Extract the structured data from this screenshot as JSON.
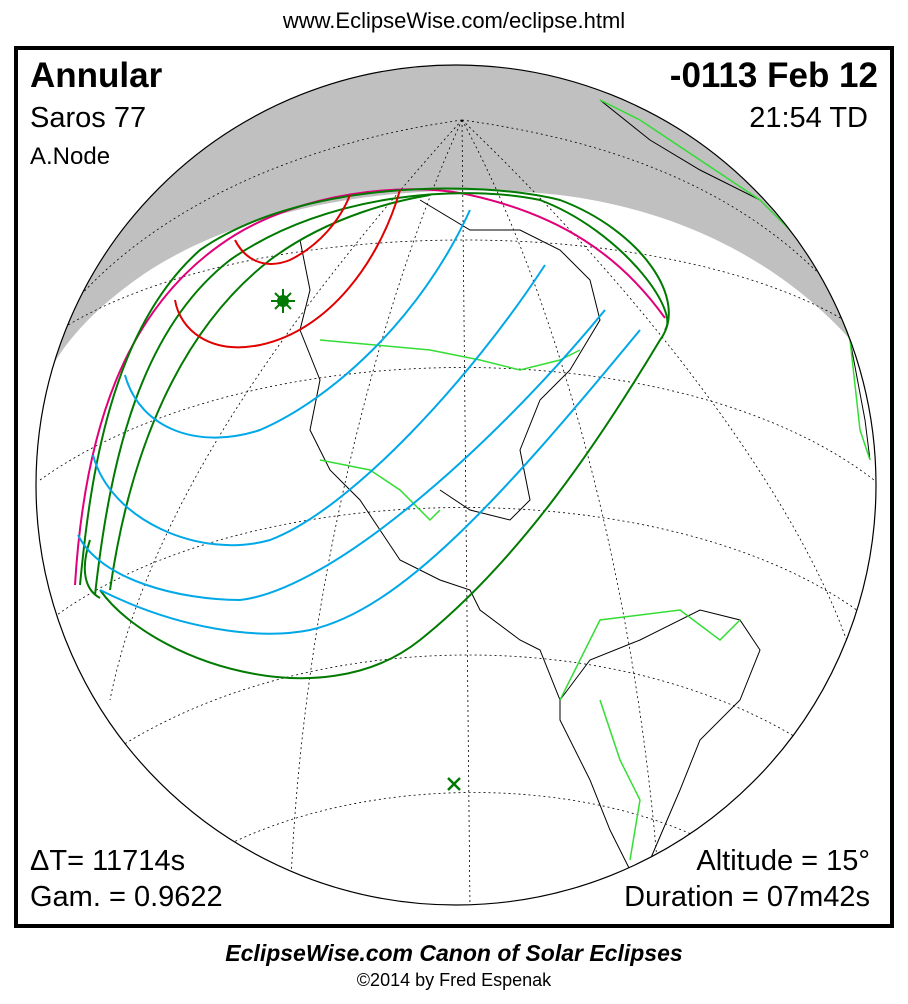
{
  "header": {
    "url": "www.EclipseWise.com/eclipse.html"
  },
  "eclipse": {
    "type": "Annular",
    "date": "-0113 Feb 12",
    "saros": "Saros  77",
    "time": "21:54 TD",
    "node": "A.Node",
    "delta_t": "ΔT=  11714s",
    "gamma": "Gam. = 0.9622",
    "altitude": "Altitude = 15°",
    "duration": "Duration = 07m42s"
  },
  "map": {
    "night_color": "#c0c0c0",
    "central_path_color": "#007a00",
    "penumbra_limit_color": "#e0007a",
    "contact_curve_color": "#e00000",
    "magnitude_curve_color": "#00a8e8",
    "border_color": "#33dd33",
    "greatest_eclipse_marker": "star-icon",
    "subsolar_marker": "x-icon"
  },
  "footer": {
    "title": "EclipseWise.com Canon of Solar Eclipses",
    "copyright": "©2014 by Fred Espenak"
  }
}
